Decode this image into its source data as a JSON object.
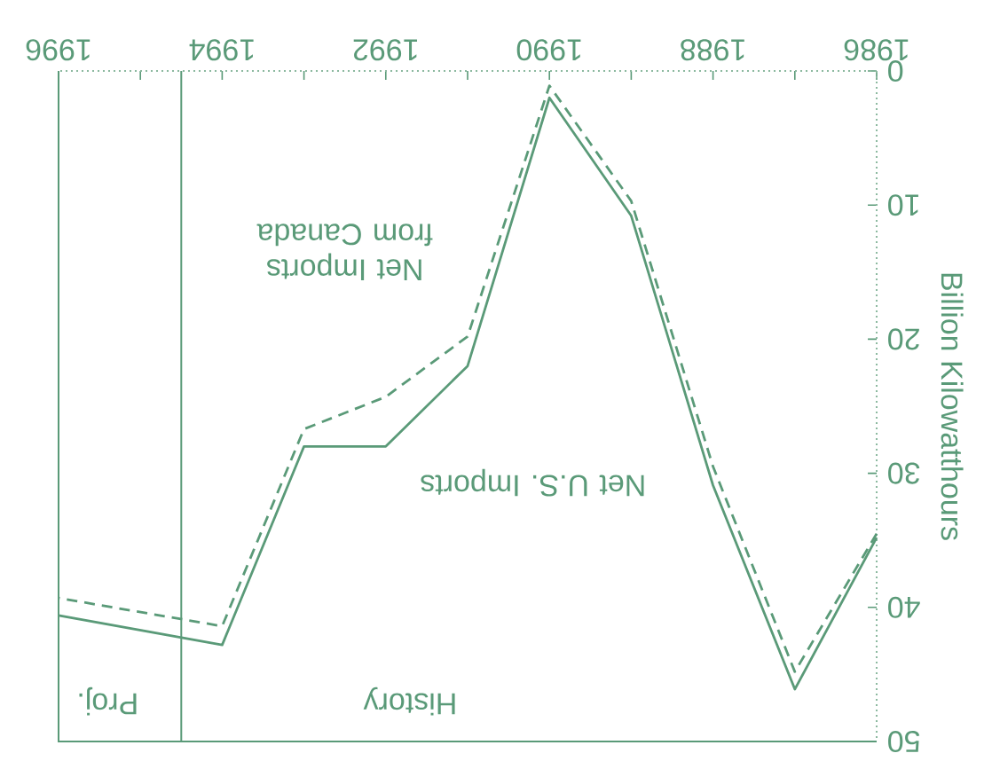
{
  "chart_data": {
    "type": "line",
    "ylabel": "Billion Kilowatthours",
    "x": [
      1986,
      1987,
      1988,
      1989,
      1990,
      1991,
      1992,
      1993,
      1994,
      1996
    ],
    "series": [
      {
        "name": "Net U.S. Imports",
        "color": "#5a9a78",
        "line_style": "solid",
        "values": [
          34.8,
          46.1,
          30.9,
          10.8,
          2.0,
          22.0,
          28.0,
          28.0,
          42.8,
          40.6
        ]
      },
      {
        "name": "Net Imports from Canada",
        "color": "#5a9a78",
        "line_style": "dashed",
        "values": [
          34.5,
          44.8,
          29.5,
          9.7,
          1.1,
          19.8,
          24.3,
          26.7,
          41.4,
          39.3
        ]
      }
    ],
    "xlim": [
      1996,
      1986
    ],
    "ylim": [
      50,
      0
    ],
    "xticks": [
      1986,
      {
        "value": 1987,
        "label": null
      },
      1988,
      {
        "value": 1989,
        "label": null
      },
      1990,
      {
        "value": 1991,
        "label": null
      },
      1992,
      {
        "value": 1993,
        "label": null
      },
      1994,
      {
        "value": 1995,
        "label": null
      },
      1996
    ],
    "yticks": [
      0,
      10,
      20,
      30,
      40,
      50
    ],
    "ref_lines": [
      {
        "axis": "x",
        "value": 1994.5,
        "color": "#5a9a78"
      }
    ],
    "annotations": [
      "History",
      "Proj."
    ],
    "marker": "none"
  }
}
